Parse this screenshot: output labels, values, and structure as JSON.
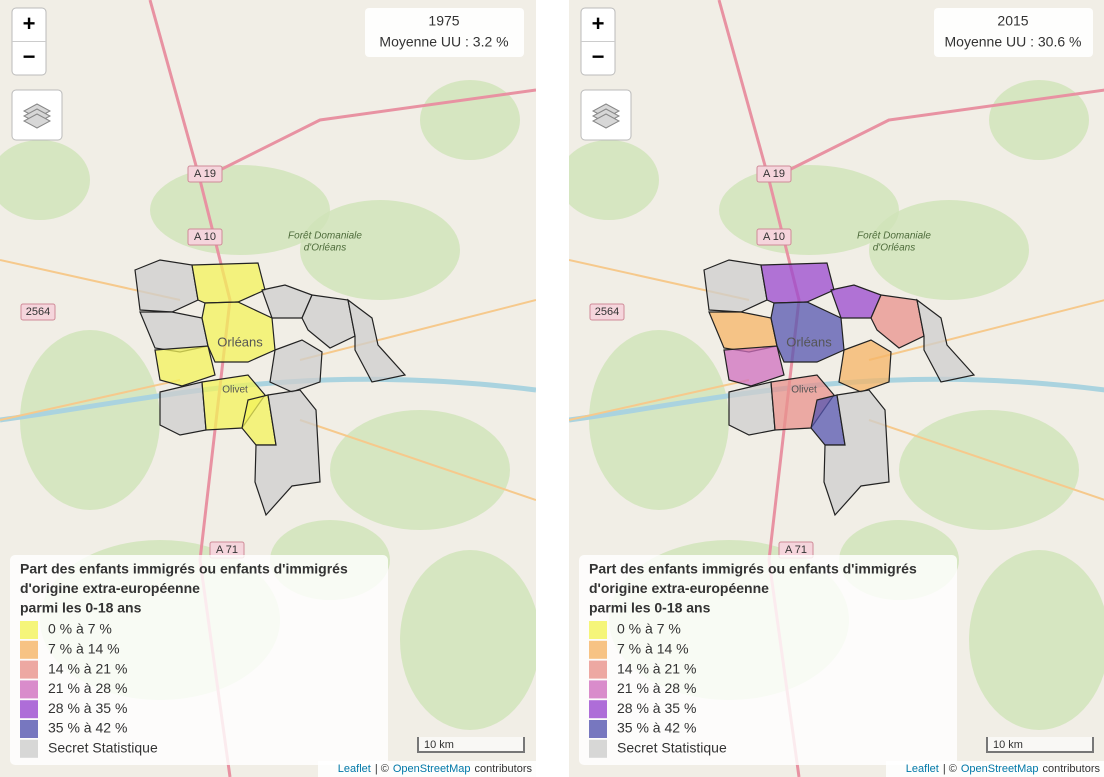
{
  "maps": [
    {
      "title": "1975",
      "average": "Moyenne UU : 3.2 %"
    },
    {
      "title": "2015",
      "average": "Moyenne UU : 30.6 %"
    }
  ],
  "legend": {
    "title": [
      "Part des enfants immigrés ou enfants d'immigrés",
      "d'origine extra-européenne",
      "parmi les 0-18 ans"
    ],
    "items": [
      {
        "label": "0 % à 7 %",
        "color": "#f3f35a"
      },
      {
        "label": "7 % à 14 %",
        "color": "#f5b466"
      },
      {
        "label": "14 % à 21 %",
        "color": "#e8928c"
      },
      {
        "label": "21 % à 28 %",
        "color": "#cf6fbf"
      },
      {
        "label": "28 % à 35 %",
        "color": "#9a48cf"
      },
      {
        "label": "35 % à 42 %",
        "color": "#5555b0"
      },
      {
        "label": "Secret Statistique",
        "color": "#cdcdcd"
      }
    ]
  },
  "controls": {
    "zoom_in": "+",
    "zoom_out": "−"
  },
  "map_labels": {
    "a19": "A 19",
    "a10": "A 10",
    "a71": "A 71",
    "d2564": "2564",
    "forest": [
      "Forêt Domaniale",
      "d'Orléans"
    ],
    "orleans": "Orléans",
    "olivet": "Olivet"
  },
  "scale": "10 km",
  "attribution": {
    "leaflet": "Leaflet",
    "separator": "| ©",
    "osm": "OpenStreetMap",
    "contributors": "contributors"
  }
}
